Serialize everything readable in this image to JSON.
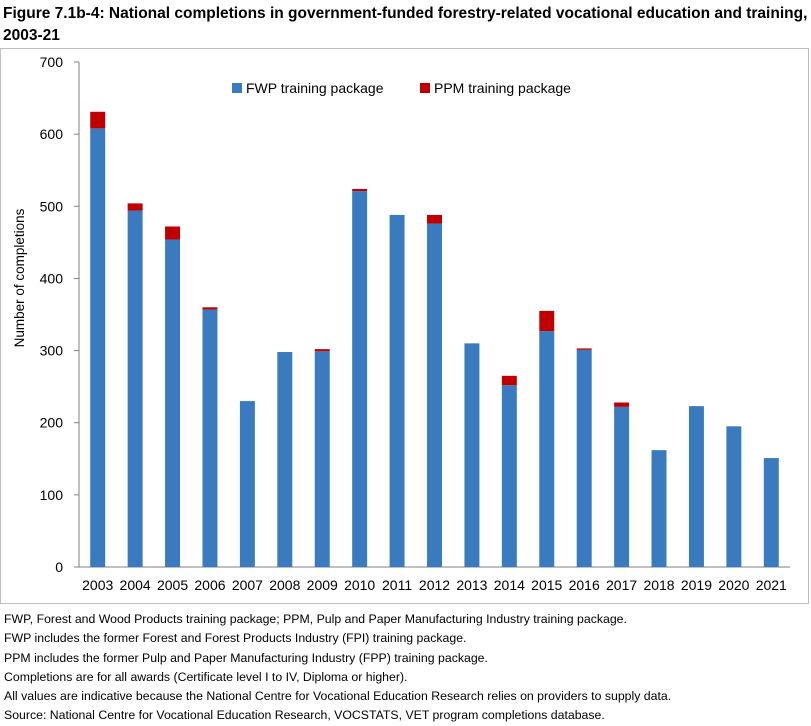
{
  "title": "Figure 7.1b-4: National completions in government-funded forestry-related vocational education and training, 2003-21",
  "colors": {
    "fwp": "#3a7bbf",
    "ppm": "#c00000",
    "axis": "#7f7f7f"
  },
  "chart_data": {
    "type": "bar",
    "stacked": true,
    "title": "Figure 7.1b-4: National completions in government-funded forestry-related vocational education and training, 2003-21",
    "xlabel": "",
    "ylabel": "Number of completions",
    "ylim": [
      0,
      700
    ],
    "yticks": [
      0,
      100,
      200,
      300,
      400,
      500,
      600,
      700
    ],
    "grid": false,
    "legend_position": "top-center",
    "categories": [
      "2003",
      "2004",
      "2005",
      "2006",
      "2007",
      "2008",
      "2009",
      "2010",
      "2011",
      "2012",
      "2013",
      "2014",
      "2015",
      "2016",
      "2017",
      "2018",
      "2019",
      "2020",
      "2021"
    ],
    "series": [
      {
        "name": "FWP training package",
        "color": "#3a7bbf",
        "values": [
          608,
          494,
          454,
          357,
          230,
          298,
          299,
          521,
          488,
          476,
          310,
          252,
          327,
          301,
          222,
          162,
          223,
          195,
          151
        ]
      },
      {
        "name": "PPM training package",
        "color": "#c00000",
        "values": [
          23,
          10,
          18,
          3,
          0,
          0,
          3,
          3,
          0,
          12,
          0,
          13,
          28,
          2,
          6,
          0,
          0,
          0,
          0
        ]
      }
    ]
  },
  "notes": [
    "FWP, Forest and Wood Products training package; PPM, Pulp and Paper Manufacturing Industry training package.",
    "FWP includes the former Forest and Forest Products Industry (FPI) training package.",
    "PPM includes the former Pulp and Paper Manufacturing Industry (FPP) training package.",
    "Completions are for all awards (Certificate level I to IV, Diploma or higher).",
    "All values are indicative because the National Centre for Vocational Education Research relies on providers to supply data.",
    "Source: National Centre for Vocational Education Research, VOCSTATS, VET program completions database."
  ]
}
